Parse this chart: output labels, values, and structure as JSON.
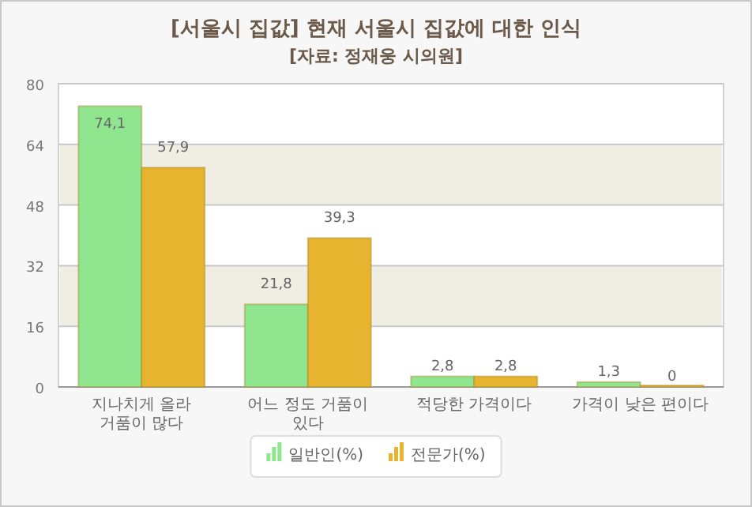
{
  "chart_data": {
    "type": "bar",
    "title": "[서울시 집값] 현재 서울시 집값에 대한 인식",
    "subtitle": "[자료: 정재웅 시의원]",
    "categories": [
      "지나치게 올라 거품이 많다",
      "어느 정도 거품이 있다",
      "적당한 가격이다",
      "가격이 낮은 편이다"
    ],
    "series": [
      {
        "name": "일반인(%)",
        "color": "#8fe68f",
        "values": [
          74.1,
          21.8,
          2.8,
          1.3
        ],
        "value_labels": [
          "74,1",
          "21,8",
          "2,8",
          "1,3"
        ]
      },
      {
        "name": "전문가(%)",
        "color": "#e6b42e",
        "values": [
          57.9,
          39.3,
          2.8,
          0
        ],
        "value_labels": [
          "57,9",
          "39,3",
          "2,8",
          "0"
        ]
      }
    ],
    "ylim": [
      0,
      80
    ],
    "yticks": [
      0,
      16,
      32,
      48,
      64,
      80
    ],
    "grid": "y",
    "legend": "bottom"
  }
}
